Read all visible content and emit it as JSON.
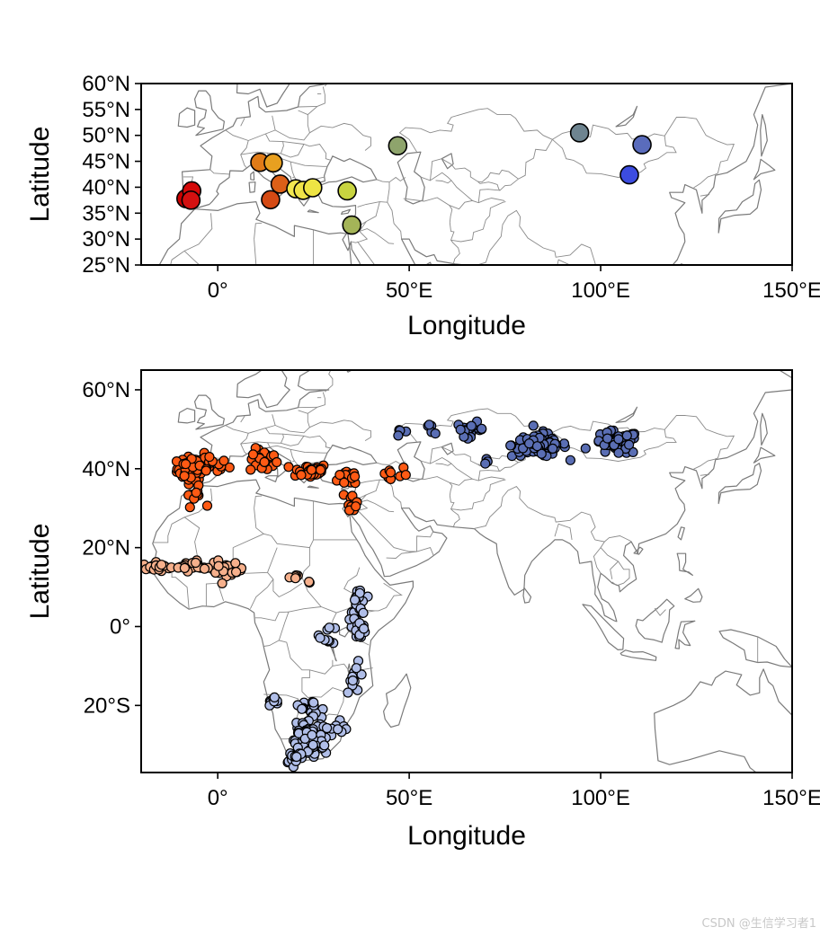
{
  "chart_data": [
    {
      "type": "scatter",
      "xlabel": "Longitude",
      "ylabel": "Latitude",
      "xlim": [
        -20,
        150
      ],
      "ylim": [
        25,
        60
      ],
      "x_ticks": [
        {
          "v": 0,
          "label": "0°"
        },
        {
          "v": 50,
          "label": "50°E"
        },
        {
          "v": 100,
          "label": "100°E"
        },
        {
          "v": 150,
          "label": "150°E"
        }
      ],
      "y_ticks": [
        {
          "v": 25,
          "label": "25°N"
        },
        {
          "v": 30,
          "label": "30°N"
        },
        {
          "v": 35,
          "label": "35°N"
        },
        {
          "v": 40,
          "label": "40°N"
        },
        {
          "v": 45,
          "label": "45°N"
        },
        {
          "v": 50,
          "label": "50°N"
        },
        {
          "v": 55,
          "label": "55°N"
        },
        {
          "v": 60,
          "label": "60°N"
        }
      ],
      "points": [
        {
          "lon": -8.3,
          "lat": 37.8,
          "color": "#cc0000"
        },
        {
          "lon": -6.8,
          "lat": 39.3,
          "color": "#d40a0a"
        },
        {
          "lon": -7.0,
          "lat": 37.5,
          "color": "#d41010"
        },
        {
          "lon": 11.0,
          "lat": 44.8,
          "color": "#e07b18"
        },
        {
          "lon": 14.5,
          "lat": 44.7,
          "color": "#e8a020"
        },
        {
          "lon": 13.8,
          "lat": 37.6,
          "color": "#d44a14"
        },
        {
          "lon": 16.3,
          "lat": 40.6,
          "color": "#dc6018"
        },
        {
          "lon": 20.4,
          "lat": 39.7,
          "color": "#f2e850"
        },
        {
          "lon": 22.3,
          "lat": 39.4,
          "color": "#f0e448"
        },
        {
          "lon": 24.8,
          "lat": 39.9,
          "color": "#eee444"
        },
        {
          "lon": 33.8,
          "lat": 39.3,
          "color": "#c8d440"
        },
        {
          "lon": 35.0,
          "lat": 32.7,
          "color": "#a4b458"
        },
        {
          "lon": 47.0,
          "lat": 48.0,
          "color": "#8ea46c"
        },
        {
          "lon": 94.5,
          "lat": 50.5,
          "color": "#6e8490"
        },
        {
          "lon": 110.8,
          "lat": 48.2,
          "color": "#5a6cbc"
        },
        {
          "lon": 107.5,
          "lat": 42.4,
          "color": "#3c4ce0"
        }
      ]
    },
    {
      "type": "scatter",
      "xlabel": "Longitude",
      "ylabel": "Latitude",
      "xlim": [
        -20,
        150
      ],
      "ylim": [
        -37,
        65
      ],
      "x_ticks": [
        {
          "v": 0,
          "label": "0°"
        },
        {
          "v": 50,
          "label": "50°E"
        },
        {
          "v": 100,
          "label": "100°E"
        },
        {
          "v": 150,
          "label": "150°E"
        }
      ],
      "y_ticks": [
        {
          "v": -20,
          "label": "20°S"
        },
        {
          "v": 0,
          "label": "0°"
        },
        {
          "v": 20,
          "label": "20°N"
        },
        {
          "v": 40,
          "label": "40°N"
        },
        {
          "v": 60,
          "label": "60°N"
        }
      ],
      "groups": [
        {
          "color": "#ff5a14",
          "clusters": [
            [
              -7,
              40,
              3,
              2.5,
              70
            ],
            [
              -2,
              41,
              4,
              2,
              20
            ],
            [
              12,
              42,
              3,
              2.5,
              25
            ],
            [
              24,
              39.5,
              4,
              1.5,
              35
            ],
            [
              35,
              38,
              3,
              2,
              15
            ],
            [
              45,
              38.5,
              4,
              2,
              10
            ],
            [
              35,
              32,
              1,
              2,
              12
            ],
            [
              -6,
              33,
              2,
              2,
              10
            ]
          ]
        },
        {
          "color": "#f6b08c",
          "clusters": [
            [
              -16,
              15,
              3,
              1,
              20
            ],
            [
              -6,
              15.5,
              5,
              1.2,
              30
            ],
            [
              3,
              14,
              3,
              1.5,
              18
            ],
            [
              20,
              12.5,
              2,
              1,
              5
            ],
            [
              24,
              11.5,
              0.5,
              0.5,
              2
            ]
          ]
        },
        {
          "color": "#5a6eb4",
          "clusters": [
            [
              66,
              50,
              3,
              1.5,
              20
            ],
            [
              56,
              50,
              2,
              1,
              5
            ],
            [
              84,
              46,
              6,
              2.5,
              80
            ],
            [
              104,
              46.5,
              5,
              2.5,
              55
            ],
            [
              48,
              49,
              2,
              1,
              4
            ],
            [
              70,
              41,
              1,
              1,
              3
            ]
          ]
        },
        {
          "color": "#b0bee8",
          "clusters": [
            [
              37,
              6,
              1.5,
              4,
              25
            ],
            [
              37,
              0,
              1.5,
              3,
              15
            ],
            [
              29,
              -2,
              2,
              2,
              10
            ],
            [
              36,
              -13,
              2,
              3,
              12
            ],
            [
              24,
              -22,
              4,
              3,
              25
            ],
            [
              24,
              -29,
              3,
              3,
              120
            ],
            [
              20,
              -33,
              2,
              1.5,
              20
            ],
            [
              15,
              -19,
              2,
              1,
              8
            ],
            [
              32,
              -26,
              2,
              2,
              10
            ]
          ]
        }
      ]
    }
  ],
  "watermark": "CSDN @生信学习者1"
}
